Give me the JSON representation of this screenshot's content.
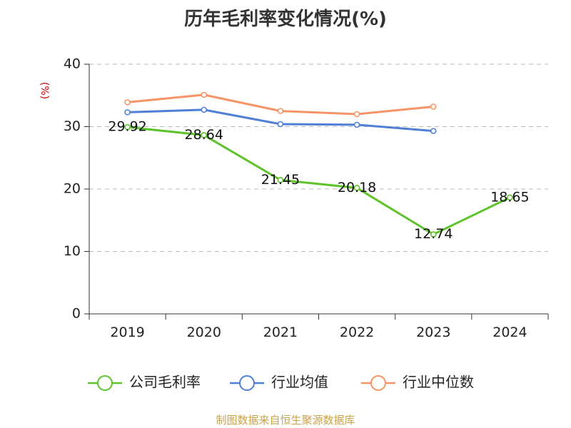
{
  "title": "历年毛利率变化情况(%)",
  "source": "制图数据来自恒生聚源数据库",
  "colors": {
    "company": "#5ec32a",
    "industry_avg": "#4f7fd6",
    "industry_median": "#f79466",
    "unit_label": "#cc0000",
    "axis": "#333333",
    "grid": "#bbbbbb"
  },
  "chart_data": {
    "type": "line",
    "title": "历年毛利率变化情况(%)",
    "ylabel": "(%)",
    "ylim": [
      0,
      40
    ],
    "yticks": [
      0,
      10,
      20,
      30,
      40
    ],
    "grid": "horizontal dashed",
    "legend_position": "bottom",
    "categories": [
      "2019",
      "2020",
      "2021",
      "2022",
      "2023",
      "2024"
    ],
    "series": [
      {
        "name": "公司毛利率",
        "color": "#5ec32a",
        "labeled": true,
        "values": [
          29.92,
          28.64,
          21.45,
          20.18,
          12.74,
          18.65
        ],
        "labels": [
          "29.92",
          "28.64",
          "21.45",
          "20.18",
          "12.74",
          "18.65"
        ]
      },
      {
        "name": "行业均值",
        "color": "#4f7fd6",
        "labeled": false,
        "values": [
          32.3,
          32.7,
          30.4,
          30.3,
          29.3,
          null
        ]
      },
      {
        "name": "行业中位数",
        "color": "#f79466",
        "labeled": false,
        "values": [
          33.9,
          35.1,
          32.5,
          32.0,
          33.2,
          null
        ]
      }
    ]
  }
}
